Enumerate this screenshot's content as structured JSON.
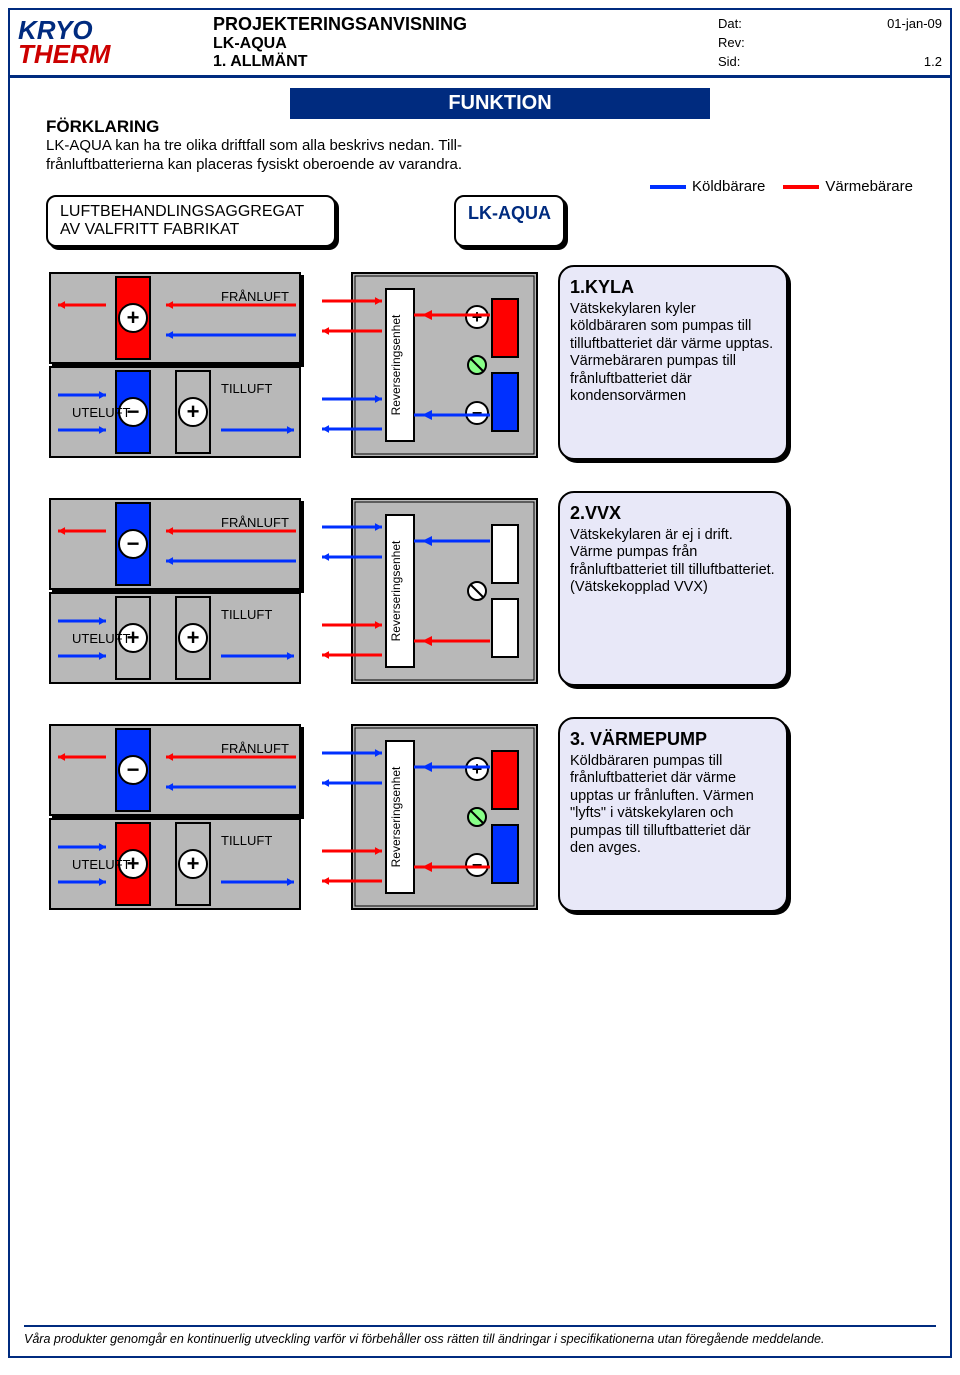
{
  "header": {
    "logo1": "KRYO",
    "logo2": "THERM",
    "title": "PROJEKTERINGSANVISNING",
    "sub1": "LK-AQUA",
    "sub2": "1. ALLMÄNT",
    "dat_l": "Dat:",
    "dat_v": "01-jan-09",
    "rev_l": "Rev:",
    "rev_v": "",
    "sid_l": "Sid:",
    "sid_v": "1.2"
  },
  "section": "FUNKTION",
  "forklaring": {
    "title": "FÖRKLARING",
    "body": "LK-AQUA kan ha tre olika driftfall som alla beskrivs nedan. Till-frånluftbatterierna kan placeras fysiskt oberoende av varandra."
  },
  "legend": {
    "kold": "Köldbärare",
    "kold_color": "#0030ff",
    "varm": "Värmebärare",
    "varm_color": "#ff0000"
  },
  "labels": {
    "ahu": "LUFTBEHANDLINGSAGGREGAT AV VALFRITT FABRIKAT",
    "lk": "LK-AQUA",
    "uteluft": "UTELUFT",
    "franluft": "FRÅNLUFT",
    "tilluft": "TILLUFT",
    "rev": "Reverseringsenhet"
  },
  "colors": {
    "blue": "#0030ff",
    "red": "#ff0000",
    "grey": "#b8b8b8",
    "dgrey": "#9a9a9a",
    "frame": "#000",
    "lav": "#e8e8f8",
    "navy": "#002b7f"
  },
  "modes": [
    {
      "id": 1,
      "title": "1.KYLA",
      "body": "Vätskekylaren kyler köldbäraren som pumpas till tilluftbatteriet där värme upptas. Värmebäraren pumpas till frånluftbatteriet där kondensorvärmen",
      "top_batt": "#ff0000",
      "bot_batt": "#0030ff",
      "top_sign": "+",
      "bot_sign": "−",
      "t2_sign": "+",
      "top_arrow": "#ff0000",
      "bot_arrow": "#0030ff",
      "lk_top": "#ff0000",
      "lk_bot": "#0030ff",
      "lk_show_internals": true,
      "pipe_top": "#ff0000",
      "pipe_bot": "#0030ff"
    },
    {
      "id": 2,
      "title": "2.VVX",
      "body": "Vätskekylaren är ej i drift. Värme pumpas från frånluftbatteriet till tilluftbatteriet. (Vätskekopplad VVX)",
      "top_batt": "#0030ff",
      "bot_batt": "#b8b8b8",
      "top_sign": "−",
      "bot_sign": "+",
      "t2_sign": "+",
      "top_arrow": "#ff0000",
      "bot_arrow": "#0030ff",
      "lk_top": "#ffffff",
      "lk_bot": "#ffffff",
      "lk_show_internals": false,
      "pipe_top": "#0030ff",
      "pipe_bot": "#ff0000"
    },
    {
      "id": 3,
      "title": "3. VÄRMEPUMP",
      "body": "Köldbäraren pumpas till frånluftbatteriet där värme upptas ur frånluften. Värmen \"lyfts\" i vätskekylaren och pumpas till tilluftbatteriet där den avges.",
      "top_batt": "#0030ff",
      "bot_batt": "#ff0000",
      "top_sign": "−",
      "bot_sign": "+",
      "t2_sign": "+",
      "top_arrow": "#ff0000",
      "bot_arrow": "#0030ff",
      "lk_top": "#ff0000",
      "lk_bot": "#0030ff",
      "lk_show_internals": true,
      "pipe_top": "#0030ff",
      "pipe_bot": "#ff0000"
    }
  ],
  "footer": "Våra produkter genomgår en kontinuerlig utveckling varför vi förbehåller oss rätten till ändringar i specifikationerna utan föregående meddelande."
}
